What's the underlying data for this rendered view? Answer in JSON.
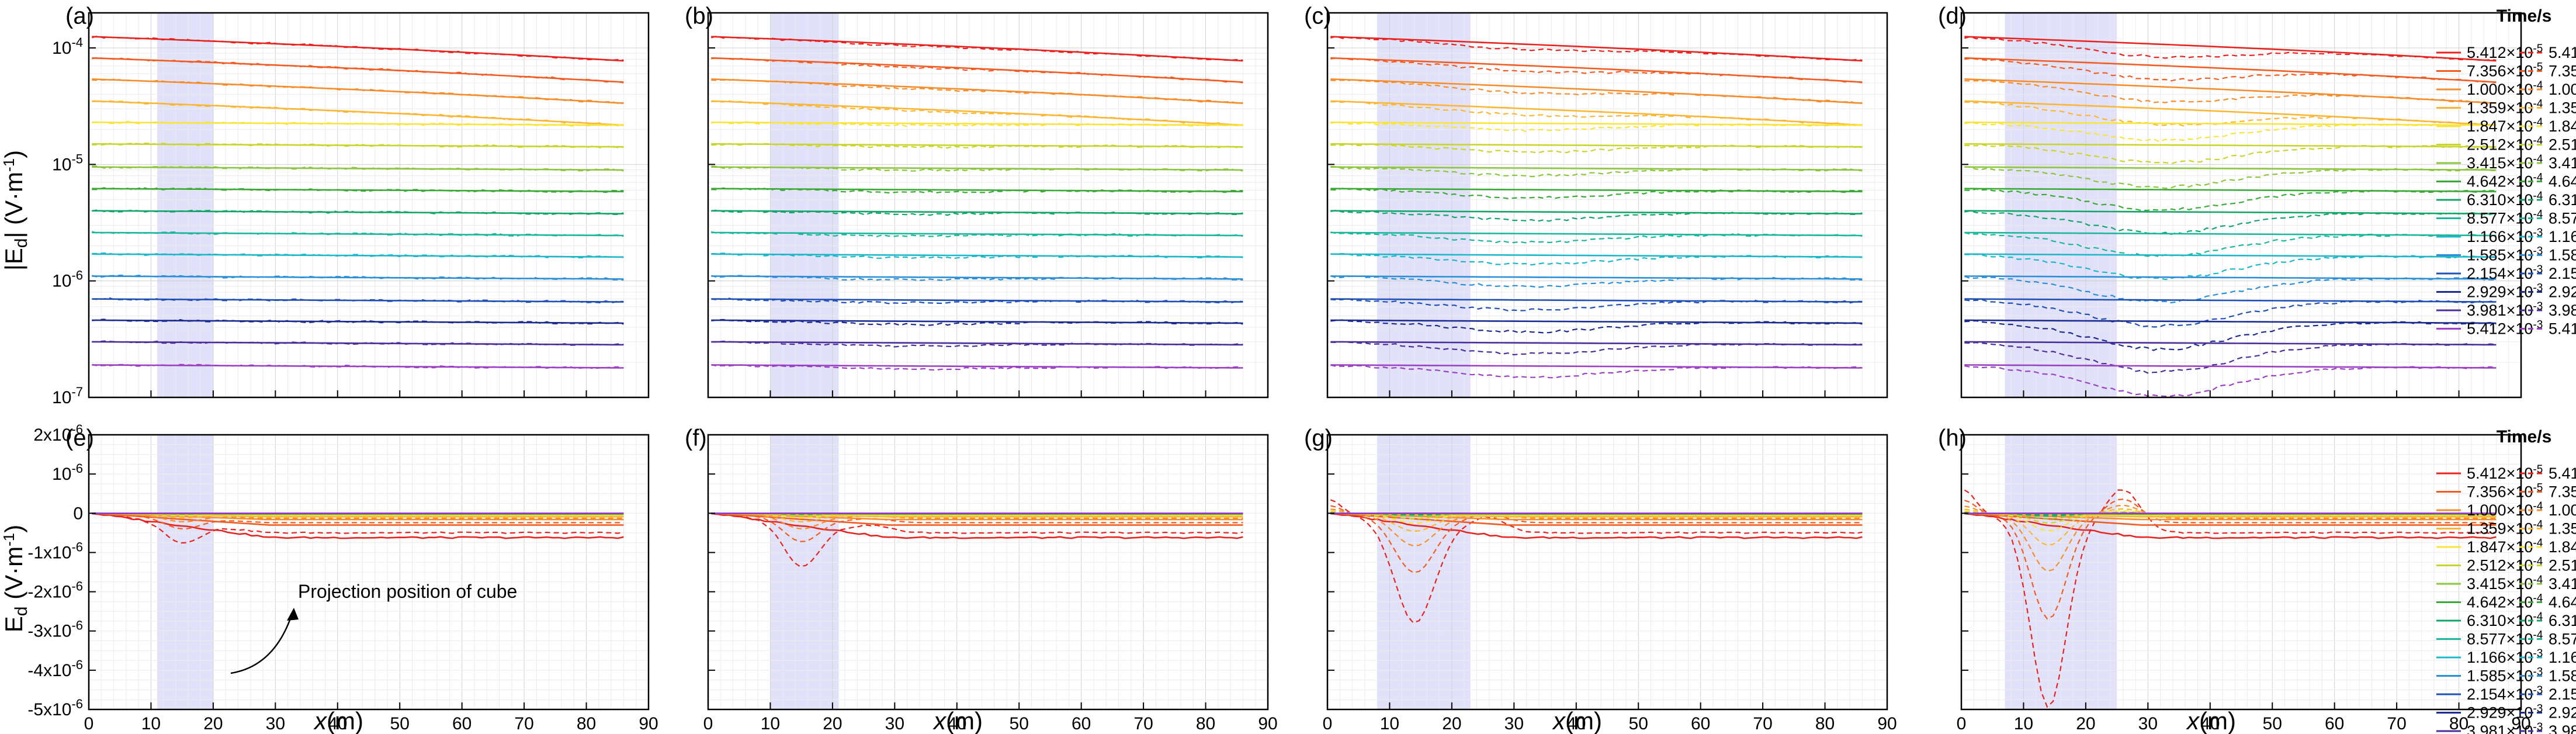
{
  "figure": {
    "top_ylabel_main": "|E",
    "top_ylabel_sub": "d",
    "top_ylabel_unit": "| (V·m",
    "top_ylabel_exp": "-1",
    "top_ylabel_close": ")",
    "bottom_ylabel_main": "E",
    "bottom_ylabel_sub": "d",
    "bottom_ylabel_unit": " (V·m",
    "bottom_ylabel_exp": "-1",
    "bottom_ylabel_close": ")",
    "xlabel_var": "x",
    "xlabel_unit": "(m)",
    "annotation": "Projection position of cube",
    "legend_title": "Time/s"
  },
  "chart_data": {
    "type": "line",
    "x_range": [
      0,
      90
    ],
    "x_ticks": [
      "0",
      "10",
      "20",
      "30",
      "40",
      "50",
      "60",
      "70",
      "80",
      "90"
    ],
    "top_ylog": true,
    "top_ylim": [
      1e-07,
      0.0002
    ],
    "top_yticks": [
      {
        "base": "10",
        "exp": "-4",
        "v": 0.0001
      },
      {
        "base": "10",
        "exp": "-5",
        "v": 1e-05
      },
      {
        "base": "10",
        "exp": "-6",
        "v": 1e-06
      },
      {
        "base": "10",
        "exp": "-7",
        "v": 1e-07
      }
    ],
    "bottom_ylim": [
      -5e-06,
      2e-06
    ],
    "bottom_yticks": [
      {
        "m": "2x10",
        "exp": "-6",
        "v": 2e-06
      },
      {
        "m": "10",
        "exp": "-6",
        "v": 1e-06
      },
      {
        "m": "0",
        "exp": "",
        "v": 0
      },
      {
        "m": "-1x10",
        "exp": "-6",
        "v": -1e-06
      },
      {
        "m": "-2x10",
        "exp": "-6",
        "v": -2e-06
      },
      {
        "m": "-3x10",
        "exp": "-6",
        "v": -3e-06
      },
      {
        "m": "-4x10",
        "exp": "-6",
        "v": -4e-06
      },
      {
        "m": "-5x10",
        "exp": "-6",
        "v": -5e-06
      }
    ],
    "times": [
      {
        "m": "5.412×10",
        "e": "-5",
        "color": "#e8231f"
      },
      {
        "m": "7.356×10",
        "e": "-5",
        "color": "#f25c22"
      },
      {
        "m": "1.000×10",
        "e": "-4",
        "color": "#f68d2c"
      },
      {
        "m": "1.359×10",
        "e": "-4",
        "color": "#fbb634"
      },
      {
        "m": "1.847×10",
        "e": "-4",
        "color": "#f9e43a"
      },
      {
        "m": "2.512×10",
        "e": "-4",
        "color": "#c9d52c"
      },
      {
        "m": "3.415×10",
        "e": "-4",
        "color": "#8cc63f"
      },
      {
        "m": "4.642×10",
        "e": "-4",
        "color": "#3aa935"
      },
      {
        "m": "6.310×10",
        "e": "-4",
        "color": "#12a56a"
      },
      {
        "m": "8.577×10",
        "e": "-4",
        "color": "#1ab79a"
      },
      {
        "m": "1.166×10",
        "e": "-3",
        "color": "#1cb7c9"
      },
      {
        "m": "1.585×10",
        "e": "-3",
        "color": "#2a8fd6"
      },
      {
        "m": "2.154×10",
        "e": "-3",
        "color": "#1e4fb4"
      },
      {
        "m": "2.929×10",
        "e": "-3",
        "color": "#1a2a8e"
      },
      {
        "m": "3.981×10",
        "e": "-3",
        "color": "#4b2d9a"
      },
      {
        "m": "5.412×10",
        "e": "-3",
        "color": "#9b3fc4"
      }
    ],
    "top_values": [
      0.000125,
      8.2e-05,
      5.4e-05,
      3.5e-05,
      2.3e-05,
      1.5e-05,
      9.5e-06,
      6.2e-06,
      4e-06,
      2.6e-06,
      1.7e-06,
      1.1e-06,
      7e-07,
      4.6e-07,
      3e-07,
      1.9e-07
    ],
    "top_end_ratio": 0.62,
    "bottom_solid_end": [
      -6.2e-07,
      -3e-07,
      -1.6e-07,
      -9e-08,
      -5e-08,
      -3e-08,
      -2e-08,
      -1e-08,
      -5e-09,
      0,
      0,
      0,
      0,
      0,
      0,
      0
    ],
    "panels": [
      {
        "label": "(a)",
        "shade": [
          11,
          20
        ],
        "top_dip": 0,
        "bottom_depth": -5e-07,
        "bottom_center": 15,
        "bottom_width": 4,
        "bottom_overshoot": 0,
        "bottom_edge": 0
      },
      {
        "label": "(b)",
        "shade": [
          10,
          21
        ],
        "top_dip": 0.06,
        "bottom_depth": -1.1e-06,
        "bottom_center": 15,
        "bottom_width": 4,
        "bottom_overshoot": 1.5e-07,
        "bottom_edge": 0
      },
      {
        "label": "(c)",
        "shade": [
          8,
          23
        ],
        "top_dip": 0.2,
        "bottom_depth": -2.55e-06,
        "bottom_center": 14,
        "bottom_width": 4.5,
        "bottom_overshoot": 3.5e-07,
        "bottom_edge": 3.5e-07
      },
      {
        "label": "(d)",
        "shade": [
          7,
          25
        ],
        "top_dip": 0.45,
        "bottom_depth": -4.7e-06,
        "bottom_center": 14,
        "bottom_width": 4,
        "bottom_overshoot": 1.05e-06,
        "bottom_edge": 6e-07
      },
      {
        "label": "(e)",
        "shade": [
          11,
          20
        ],
        "top_dip": 0,
        "bottom_depth": -5e-07,
        "bottom_center": 15,
        "bottom_width": 4,
        "bottom_overshoot": 0,
        "bottom_edge": 0
      },
      {
        "label": "(f)",
        "shade": [
          10,
          21
        ],
        "top_dip": 0.06,
        "bottom_depth": -1.1e-06,
        "bottom_center": 15,
        "bottom_width": 4,
        "bottom_overshoot": 1.5e-07,
        "bottom_edge": 0
      },
      {
        "label": "(g)",
        "shade": [
          8,
          23
        ],
        "top_dip": 0.2,
        "bottom_depth": -2.55e-06,
        "bottom_center": 14,
        "bottom_width": 4.5,
        "bottom_overshoot": 3.5e-07,
        "bottom_edge": 3.5e-07
      },
      {
        "label": "(h)",
        "shade": [
          7,
          25
        ],
        "top_dip": 0.45,
        "bottom_depth": -4.7e-06,
        "bottom_center": 14,
        "bottom_width": 4,
        "bottom_overshoot": 1.05e-06,
        "bottom_edge": 6e-07
      }
    ]
  }
}
